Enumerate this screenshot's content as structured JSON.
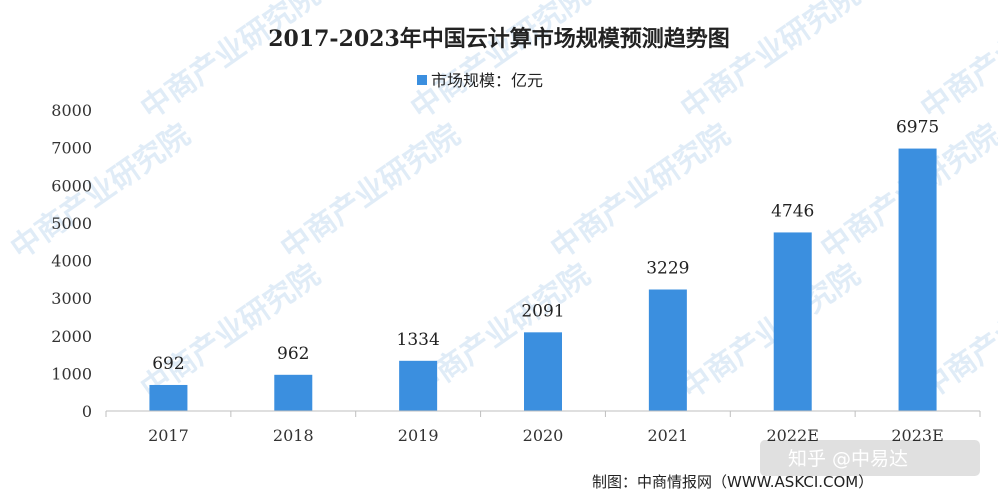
{
  "watermark": "中商产业研究院",
  "overlay_text": "知乎 @中易达",
  "source": "制图：中商情报网（WWW.ASKCI.COM）",
  "chart_data": {
    "type": "bar",
    "title": "2017-2023年中国云计算市场规模预测趋势图",
    "legend": "市场规模：亿元",
    "legend_position": "top-center",
    "categories": [
      "2017",
      "2018",
      "2019",
      "2020",
      "2021",
      "2022E",
      "2023E"
    ],
    "values": [
      692,
      962,
      1334,
      2091,
      3229,
      4746,
      6975
    ],
    "yticks": [
      "0",
      "1000",
      "2000",
      "3000",
      "4000",
      "5000",
      "6000",
      "7000",
      "8000"
    ],
    "ylim": [
      0,
      8000
    ],
    "bar_color": "#3b8fdf",
    "grid": false
  }
}
